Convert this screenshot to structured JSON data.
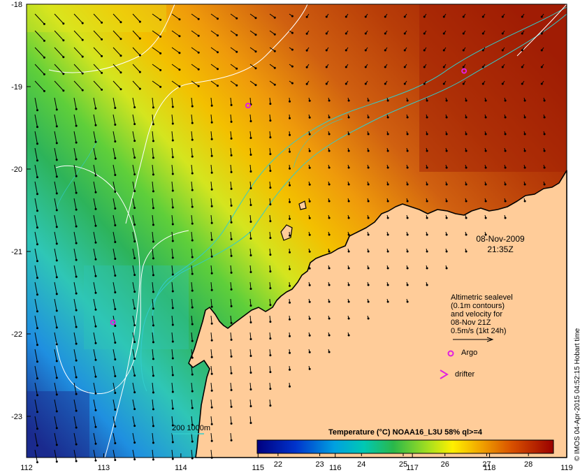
{
  "chart_data": {
    "type": "map",
    "longitude_ticks": [
      "112",
      "113",
      "114",
      "115",
      "116",
      "117",
      "118",
      "119"
    ],
    "latitude_ticks": [
      "-18",
      "-19",
      "-20",
      "-21",
      "-22",
      "-23"
    ],
    "xlim": [
      112,
      119
    ],
    "ylim": [
      -23.5,
      -18
    ],
    "date_label": "08-Nov-2009",
    "time_label": "21:35Z",
    "legend": {
      "line1": "Altimetric sealevel",
      "line2": "(0.1m contours)",
      "line3": "and velocity for",
      "line4": "08-Nov 21Z",
      "line5": "0.5m/s (1kt 24h)",
      "argo_label": "Argo",
      "drifter_label": "drifter"
    },
    "bathymetry_label": "200  1000m",
    "colorbar": {
      "title": "Temperature (°C) NOAA16_L3U 58% ql>=4",
      "ticks": [
        "22",
        "23",
        "24",
        "25",
        "26",
        "27",
        "28"
      ],
      "range": [
        21.5,
        28.6
      ]
    },
    "argo_floats": [
      {
        "lon": 114.87,
        "lat": -19.23
      },
      {
        "lon": 117.67,
        "lat": -18.81
      },
      {
        "lon": 113.12,
        "lat": -21.86
      }
    ],
    "credit": "© IMOS 04-Apr-2015 04:52:15 Hobart time",
    "colors": {
      "land": "#FFCC99",
      "coast": "#000000",
      "contour": "#ffffff",
      "isobath": "#33cccc",
      "argo": "#e020e0",
      "arrow": "#000000"
    }
  }
}
